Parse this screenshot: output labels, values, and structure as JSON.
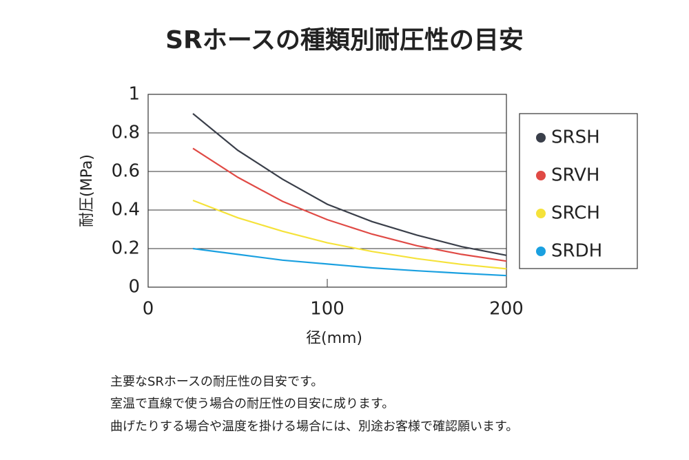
{
  "chart_data": {
    "type": "line",
    "title": "SRホースの種類別耐圧性の目安",
    "xlabel": "径(mm)",
    "ylabel": "耐圧(MPa)",
    "x": [
      25,
      50,
      75,
      100,
      125,
      150,
      175,
      200
    ],
    "series": [
      {
        "name": "SRSH",
        "color": "#3a3f4a",
        "values": [
          0.9,
          0.71,
          0.56,
          0.43,
          0.34,
          0.27,
          0.21,
          0.165
        ]
      },
      {
        "name": "SRVH",
        "color": "#e04a45",
        "values": [
          0.72,
          0.57,
          0.445,
          0.35,
          0.275,
          0.215,
          0.17,
          0.135
        ]
      },
      {
        "name": "SRCH",
        "color": "#f5e23a",
        "values": [
          0.45,
          0.36,
          0.29,
          0.23,
          0.185,
          0.148,
          0.118,
          0.095
        ]
      },
      {
        "name": "SRDH",
        "color": "#1aa0e0",
        "values": [
          0.2,
          0.17,
          0.14,
          0.12,
          0.1,
          0.085,
          0.072,
          0.06
        ]
      }
    ],
    "xlim": [
      0,
      200
    ],
    "ylim": [
      0,
      1
    ],
    "xticks": [
      0,
      100,
      200
    ],
    "yticks": [
      0,
      0.2,
      0.4,
      0.6,
      0.8,
      1
    ],
    "grid": true
  },
  "notes": [
    "主要なSRホースの耐圧性の目安です。",
    "室温で直線で使う場合の耐圧性の目安に成ります。",
    "曲げたりする場合や温度を掛ける場合には、別途お客様で確認願います。"
  ]
}
